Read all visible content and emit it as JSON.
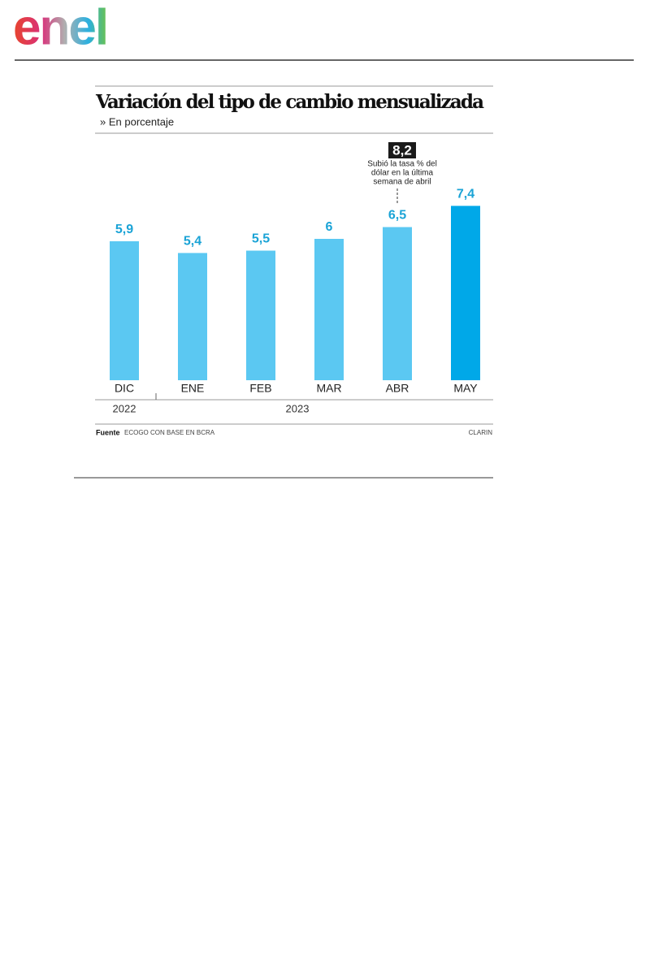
{
  "logo": {
    "text": "enel"
  },
  "chart_data": {
    "type": "bar",
    "title": "Variación del tipo de cambio mensualizada",
    "subtitle": "» En porcentaje",
    "categories": [
      "DIC",
      "ENE",
      "FEB",
      "MAR",
      "ABR",
      "MAY"
    ],
    "values": [
      5.9,
      5.4,
      5.5,
      6,
      6.5,
      7.4
    ],
    "value_labels": [
      "5,9",
      "5,4",
      "5,5",
      "6",
      "6,5",
      "7,4"
    ],
    "colors": [
      "#5bc8f2",
      "#5bc8f2",
      "#5bc8f2",
      "#5bc8f2",
      "#5bc8f2",
      "#00a8e8"
    ],
    "label_color": "#1aa3d6",
    "years": [
      "2022",
      "2023"
    ],
    "annotation": {
      "label": "8,2",
      "lines": [
        "Subió la tasa % del",
        "dólar en la última",
        "semana de abril"
      ]
    },
    "source_label": "Fuente",
    "source": "ECOGO CON BASE EN BCRA",
    "credit": "CLARIN"
  }
}
